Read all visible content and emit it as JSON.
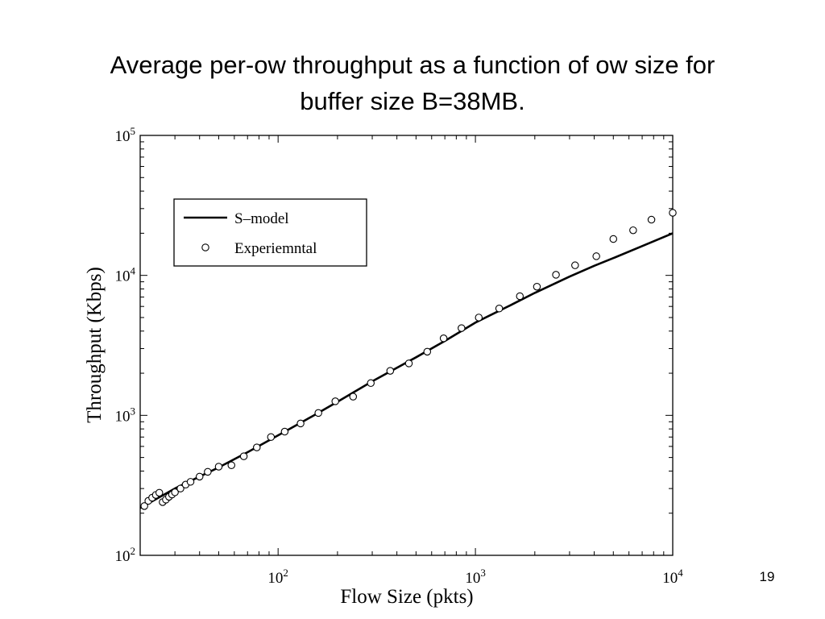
{
  "slide": {
    "title_line1": "Average per-ow throughput as a function of ow size for",
    "title_line2": "buffer size B=38MB.",
    "page_number": "19"
  },
  "chart_data": {
    "type": "line",
    "title": "",
    "xlabel": "Flow Size (pkts)",
    "ylabel": "Throughput (Kbps)",
    "xscale": "log",
    "yscale": "log",
    "xlim": [
      20,
      10000
    ],
    "ylim": [
      100,
      100000
    ],
    "xticks": [
      {
        "value": 100,
        "base": "10",
        "exp": "2"
      },
      {
        "value": 1000,
        "base": "10",
        "exp": "3"
      },
      {
        "value": 10000,
        "base": "10",
        "exp": "4"
      }
    ],
    "yticks": [
      {
        "value": 100,
        "base": "10",
        "exp": "2"
      },
      {
        "value": 1000,
        "base": "10",
        "exp": "3"
      },
      {
        "value": 10000,
        "base": "10",
        "exp": "4"
      },
      {
        "value": 100000,
        "base": "10",
        "exp": "5"
      }
    ],
    "grid": false,
    "legend": {
      "position": "top-left",
      "entries": [
        {
          "label": "S–model",
          "style": "line",
          "color": "#000000"
        },
        {
          "label": "Experiemntal",
          "style": "circle-marker",
          "color": "#000000"
        }
      ]
    },
    "series": [
      {
        "name": "S–model",
        "style": "line",
        "color": "#000000",
        "points": [
          [
            20,
            218
          ],
          [
            30,
            300
          ],
          [
            40,
            365
          ],
          [
            50,
            425
          ],
          [
            70,
            545
          ],
          [
            100,
            720
          ],
          [
            150,
            990
          ],
          [
            200,
            1250
          ],
          [
            300,
            1750
          ],
          [
            500,
            2600
          ],
          [
            700,
            3400
          ],
          [
            1000,
            4600
          ],
          [
            1500,
            6100
          ],
          [
            2000,
            7500
          ],
          [
            3000,
            9800
          ],
          [
            4000,
            11700
          ],
          [
            5000,
            13300
          ],
          [
            7000,
            16200
          ],
          [
            10000,
            20000
          ]
        ]
      },
      {
        "name": "Experiemntal",
        "style": "markers",
        "color": "#000000",
        "points": [
          [
            21,
            225
          ],
          [
            22,
            245
          ],
          [
            23,
            258
          ],
          [
            24,
            270
          ],
          [
            25,
            280
          ],
          [
            26,
            240
          ],
          [
            27,
            250
          ],
          [
            28,
            262
          ],
          [
            29,
            272
          ],
          [
            30,
            282
          ],
          [
            32,
            300
          ],
          [
            34,
            320
          ],
          [
            36,
            335
          ],
          [
            40,
            365
          ],
          [
            44,
            395
          ],
          [
            50,
            430
          ],
          [
            58,
            440
          ],
          [
            67,
            510
          ],
          [
            78,
            590
          ],
          [
            92,
            700
          ],
          [
            108,
            765
          ],
          [
            130,
            875
          ],
          [
            160,
            1040
          ],
          [
            195,
            1260
          ],
          [
            240,
            1360
          ],
          [
            295,
            1700
          ],
          [
            370,
            2080
          ],
          [
            460,
            2350
          ],
          [
            570,
            2850
          ],
          [
            690,
            3550
          ],
          [
            850,
            4200
          ],
          [
            1040,
            5000
          ],
          [
            1320,
            5800
          ],
          [
            1680,
            7100
          ],
          [
            2050,
            8300
          ],
          [
            2560,
            10100
          ],
          [
            3200,
            11800
          ],
          [
            4100,
            13700
          ],
          [
            5000,
            18200
          ],
          [
            6300,
            21000
          ],
          [
            7800,
            25000
          ],
          [
            10000,
            28000
          ]
        ]
      }
    ]
  }
}
